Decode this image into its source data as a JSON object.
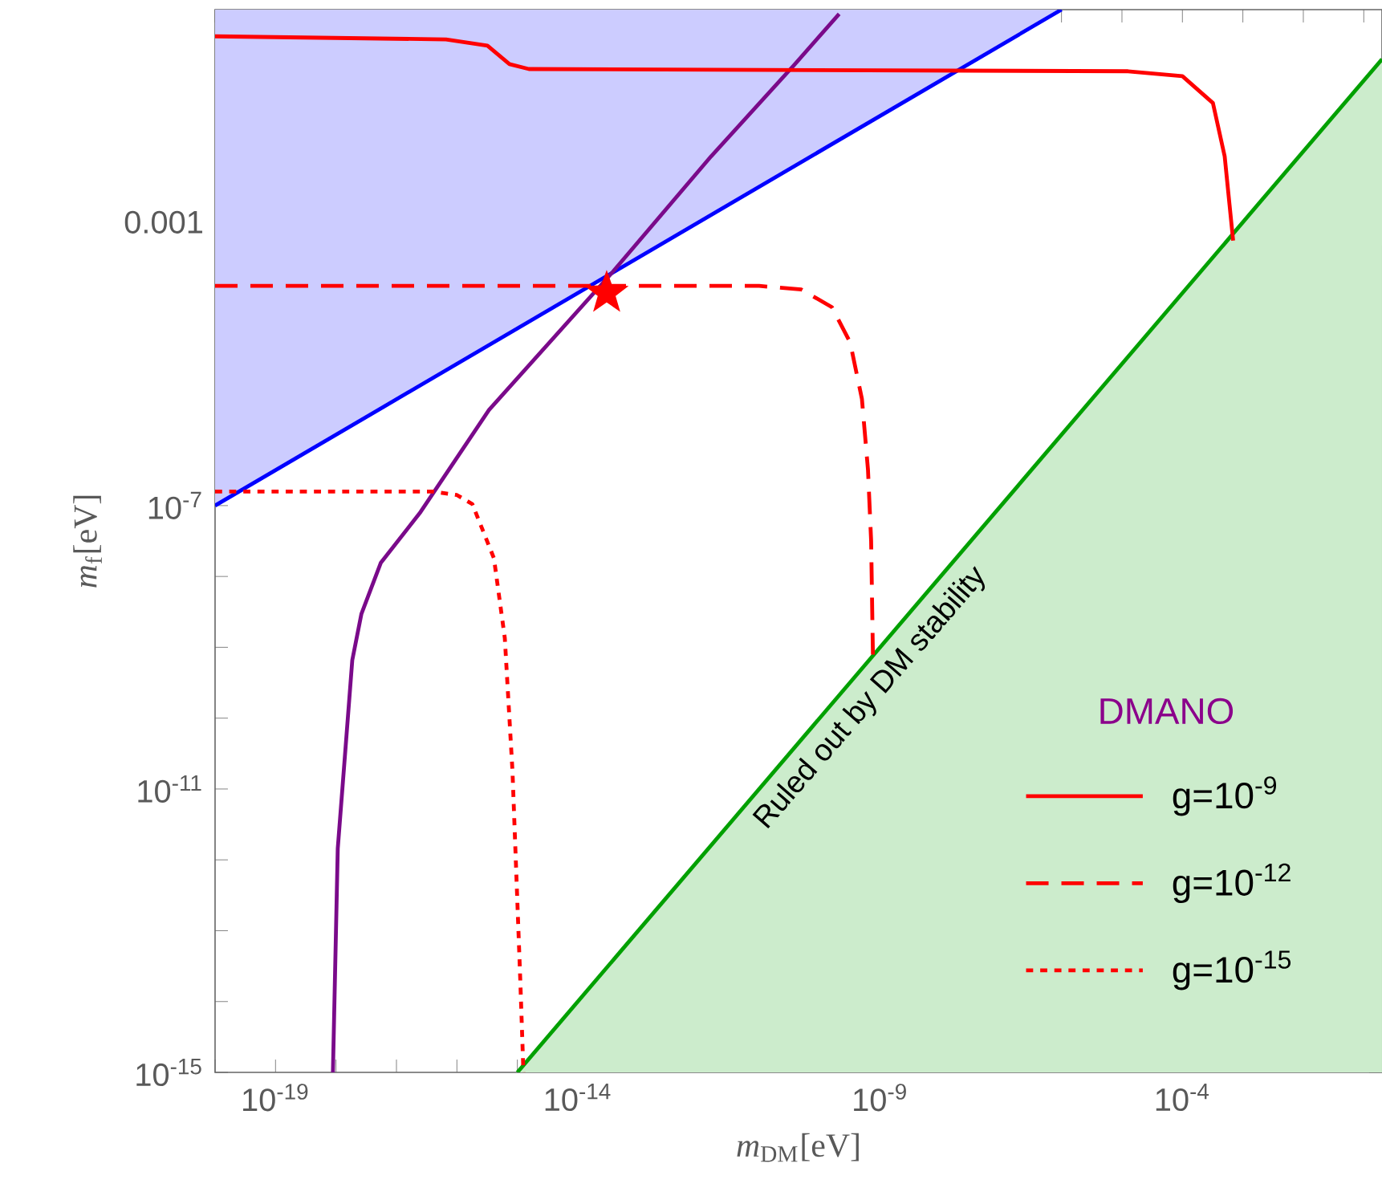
{
  "chart_data": {
    "type": "line",
    "log": "xy",
    "xlabel": "*m*$_{DM}$[eV]",
    "ylabel": "*m*$_{f}$[eV]",
    "legend_title": "DMANO",
    "legend": "bottom right",
    "xlim": [
      1e-20,
      0.2
    ],
    "ylim": [
      1e-15,
      1
    ],
    "xticks": [
      {
        "value": 1e-20,
        "label": null
      },
      {
        "value": 1e-19,
        "label": "10$^{-19}$"
      },
      {
        "value": 1e-18,
        "label": null
      },
      {
        "value": 1e-17,
        "label": null
      },
      {
        "value": 1e-16,
        "label": null
      },
      {
        "value": 1e-15,
        "label": null
      },
      {
        "value": 1e-14,
        "label": "10$^{-14}$"
      },
      {
        "value": 1e-13,
        "label": null
      },
      {
        "value": 1e-12,
        "label": null
      },
      {
        "value": 1e-11,
        "label": null
      },
      {
        "value": 1e-10,
        "label": null
      },
      {
        "value": 1e-09,
        "label": "10$^{-9}$"
      },
      {
        "value": 1e-08,
        "label": null
      },
      {
        "value": 1e-07,
        "label": null
      },
      {
        "value": 1e-06,
        "label": null
      },
      {
        "value": 1e-05,
        "label": null
      },
      {
        "value": 0.0001,
        "label": "10$^{-4}$"
      },
      {
        "value": 0.001,
        "label": null
      },
      {
        "value": 0.01,
        "label": null
      },
      {
        "value": 0.1,
        "label": null
      }
    ],
    "yticks": [
      {
        "value": 1e-15,
        "label": "10$^{-15}$"
      },
      {
        "value": 1e-14,
        "label": null
      },
      {
        "value": 1e-13,
        "label": null
      },
      {
        "value": 1e-12,
        "label": null
      },
      {
        "value": 1e-11,
        "label": "10$^{-11}$"
      },
      {
        "value": 1e-10,
        "label": null
      },
      {
        "value": 1e-09,
        "label": null
      },
      {
        "value": 1e-08,
        "label": null
      },
      {
        "value": 1e-07,
        "label": "10$^{-7}$"
      },
      {
        "value": 1e-06,
        "label": null
      },
      {
        "value": 1e-05,
        "label": null
      },
      {
        "value": 0.0001,
        "label": null
      },
      {
        "value": 0.001,
        "label": "0.001"
      },
      {
        "value": 0.01,
        "label": null
      },
      {
        "value": 0.1,
        "label": null
      }
    ],
    "series": [
      {
        "color": "#0000ff",
        "x": [
          1e-20,
          1e-06
        ],
        "values": [
          1e-07,
          1
        ],
        "lower": [
          1e-07,
          1
        ],
        "upper": [
          1,
          1
        ]
      },
      {
        "color": "#00a000",
        "x": [
          1e-15,
          0.2
        ],
        "values": [
          1e-15,
          0.2
        ],
        "lower": [
          1e-15,
          1e-15
        ],
        "upper": [
          1e-15,
          0.2
        ]
      },
      {
        "color": "#7a0a8a",
        "x": [
          8.9e-19,
          1.07e-18,
          1.38e-18,
          1.86e-18,
          2.63e-18,
          5.5e-18,
          2.5e-17,
          3.4e-16,
          3.8e-14,
          1.6e-12,
          3.8e-11,
          2.1e-10
        ],
        "values": [
          1e-15,
          1.45e-12,
          2.4e-11,
          6.6e-10,
          2.95e-09,
          1.55e-08,
          8.1e-08,
          2.24e-06,
          0.0002,
          0.0085,
          0.166,
          0.87
        ]
      },
      {
        "name": "g=10$^{-9}$",
        "line_style": "solid",
        "color": "#ff0000",
        "x": [
          1e-20,
          6.6e-17,
          3.2e-16,
          7.4e-16,
          1.55e-15,
          1.26e-05,
          0.0001,
          0.00032,
          0.0005,
          0.00069
        ],
        "values": [
          0.42,
          0.38,
          0.31,
          0.17,
          0.145,
          0.135,
          0.115,
          0.048,
          0.0085,
          0.00055
        ]
      },
      {
        "name": "g=10$^{-12}$",
        "line_style": "dashed",
        "color": "#ff0000",
        "x": [
          1e-20,
          1e-11,
          5e-11,
          1.6e-10,
          3.2e-10,
          5e-10,
          6.3e-10,
          7.1e-10,
          7.6e-10
        ],
        "values": [
          0.000126,
          0.000126,
          0.000112,
          6.3e-05,
          2e-05,
          3.2e-06,
          3.2e-07,
          3.2e-08,
          7.9e-10
        ]
      },
      {
        "name": "g=10$^{-15}$",
        "line_style": "dotted",
        "color": "#ff0000",
        "x": [
          1e-20,
          4e-17,
          1e-16,
          1.8e-16,
          4.1e-16,
          6.2e-16,
          8.3e-16,
          1.12e-15,
          1.26e-15
        ],
        "values": [
          1.58e-07,
          1.58e-07,
          1.41e-07,
          1.05e-07,
          1.8e-08,
          1.35e-09,
          1.8e-11,
          1.9e-14,
          1e-15
        ]
      },
      {
        "type": "scatter",
        "marker": "star",
        "color": "#ff0000",
        "x": [
          3e-14
        ],
        "values": [
          0.0001
        ]
      }
    ],
    "annotations": [
      "Ruled out by DM stability"
    ]
  }
}
